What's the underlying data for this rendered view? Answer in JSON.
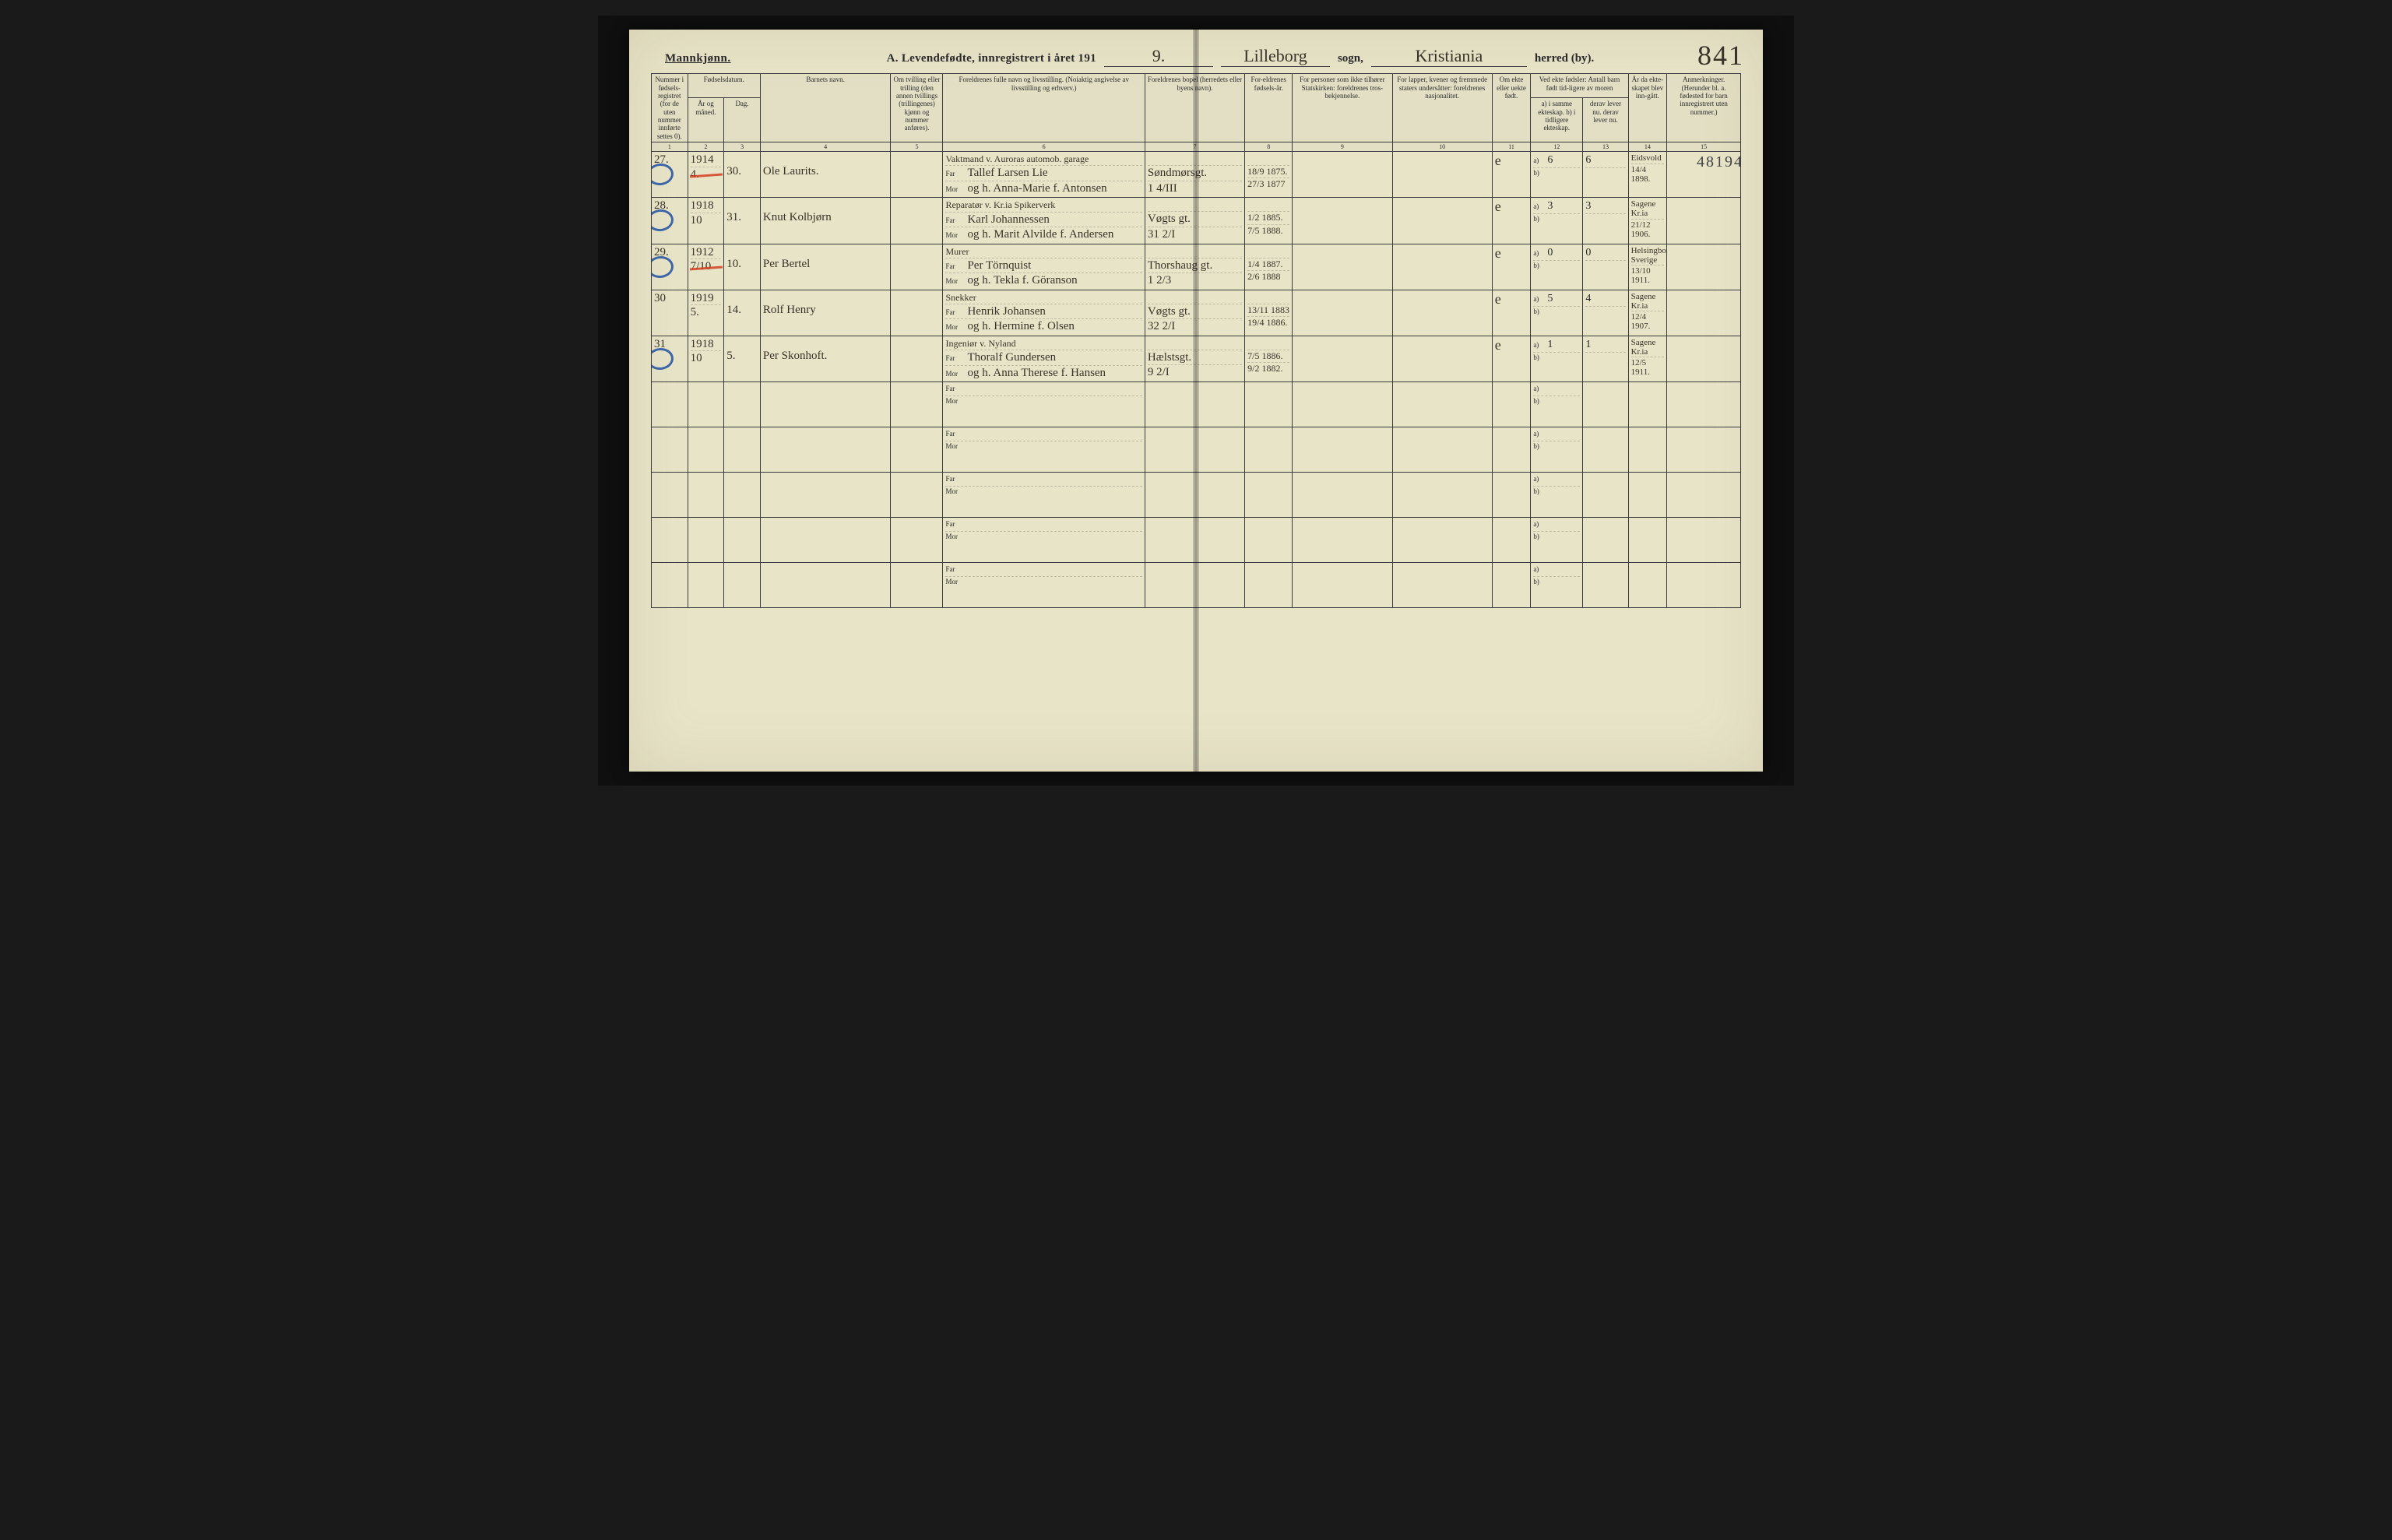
{
  "page_number": "841",
  "title": {
    "left_label": "Mannkjønn.",
    "main": "A.  Levendefødte, innregistrert i året 191",
    "year_suffix": "9.",
    "sogn_value": "Lilleborg",
    "sogn_label": "sogn,",
    "herred_value": "Kristiania",
    "herred_label": "herred (by)."
  },
  "stamp": "48194",
  "headers": {
    "c1": "Nummer i fødsels-registret (for de uten nummer innførte settes 0).",
    "c2_3_top": "Fødselsdatum.",
    "c2": "År og måned.",
    "c3": "Dag.",
    "c4": "Barnets navn.",
    "c5": "Om tvilling eller trilling (den annen tvillings (trillingenes) kjønn og nummer anføres).",
    "c6": "Foreldrenes fulle navn og livsstilling. (Noiaktig angivelse av livsstilling og erhverv.)",
    "c7": "Foreldrenes bopel (herredets eller byens navn).",
    "c8": "For-eldrenes fødsels-år.",
    "c9": "For personer som ikke tilhører Statskirken: foreldrenes tros-bekjennelse.",
    "c10": "For lapper, kvener og fremmede staters undersåtter: foreldrenes nasjonalitet.",
    "c11": "Om ekte eller uekte født.",
    "c12_13_top": "Ved ekte fødsler: Antall barn født tid-ligere av moren",
    "c12": "a) i samme ekteskap.  b) i tidligere ekteskap.",
    "c13": "derav lever nu.  derav lever nu.",
    "c14": "År da ekte-skapet blev inn-gått.",
    "c15": "Anmerkninger. (Herunder bl. a. fødested for barn innregistrert uten nummer.)"
  },
  "column_numbers": [
    "1",
    "2",
    "3",
    "4",
    "5",
    "6",
    "7",
    "8",
    "9",
    "10",
    "11",
    "12",
    "13",
    "14",
    "15"
  ],
  "rows": [
    {
      "num": "27.",
      "year": "1914",
      "month": "4.",
      "day": "30.",
      "circle": true,
      "year_red_strike": true,
      "name": "Ole Laurits.",
      "occ": "Vaktmand v. Auroras automob. garage",
      "far": "Tallef Larsen Lie",
      "mor": "og h. Anna-Marie f. Antonsen",
      "addr_far": "Søndmørsgt.",
      "addr_mor": "1 4/III",
      "faar": "18/9 1875.",
      "maar": "27/3 1877",
      "ekte": "e",
      "a": "6",
      "a2": "6",
      "b": "",
      "c14a": "Eidsvold",
      "c14b": "14/4 1898.",
      "note": ""
    },
    {
      "num": "28.",
      "year": "1918",
      "month": "10",
      "day": "31.",
      "circle": true,
      "name": "Knut Kolbjørn",
      "occ": "Reparatør v. Kr.ia Spikerverk",
      "far": "Karl Johannessen",
      "mor": "og h. Marit Alvilde f. Andersen",
      "addr_far": "Vøgts gt.",
      "addr_mor": "31 2/I",
      "faar": "1/2 1885.",
      "maar": "7/5 1888.",
      "ekte": "e",
      "a": "3",
      "a2": "3",
      "b": "",
      "c14a": "Sagene Kr.ia",
      "c14b": "21/12 1906.",
      "note": "",
      "blue_diag": true
    },
    {
      "num": "29.",
      "year": "1912",
      "month": "7/10",
      "day": "10.",
      "circle": true,
      "year_red_strike": true,
      "name": "Per Bertel",
      "occ": "Murer",
      "far": "Per Törnquist",
      "mor": "og h. Tekla f. Göranson",
      "addr_far": "Thorshaug gt.",
      "addr_mor": "1 2/3",
      "faar": "1/4 1887.",
      "maar": "2/6 1888",
      "ekte": "e",
      "a": "0",
      "a2": "0",
      "b": "",
      "c14a": "Helsingborg Sverige",
      "c14b": "13/10 1911.",
      "note": ""
    },
    {
      "num": "30",
      "year": "1919",
      "month": "5.",
      "day": "14.",
      "circle": false,
      "name": "Rolf Henry",
      "occ": "Snekker",
      "far": "Henrik Johansen",
      "mor": "og h. Hermine f. Olsen",
      "addr_far": "Vøgts gt.",
      "addr_mor": "32 2/I",
      "faar": "13/11 1883",
      "maar": "19/4 1886.",
      "ekte": "e",
      "a": "5",
      "a2": "4",
      "b": "",
      "c14a": "Sagene Kr.ia",
      "c14b": "12/4 1907.",
      "note": ""
    },
    {
      "num": "31",
      "year": "1918",
      "month": "10",
      "day": "5.",
      "circle": true,
      "name": "Per Skonhoft.",
      "occ": "Ingeniør v. Nyland",
      "far": "Thoralf Gundersen",
      "mor": "og h. Anna Therese f. Hansen",
      "addr_far": "Hælstsgt.",
      "addr_mor": "9 2/I",
      "faar": "7/5 1886.",
      "maar": "9/2 1882.",
      "ekte": "e",
      "a": "1",
      "a2": "1",
      "b": "",
      "c14a": "Sagene Kr.ia",
      "c14b": "12/5 1911.",
      "note": ""
    }
  ],
  "empty_rows": 5
}
